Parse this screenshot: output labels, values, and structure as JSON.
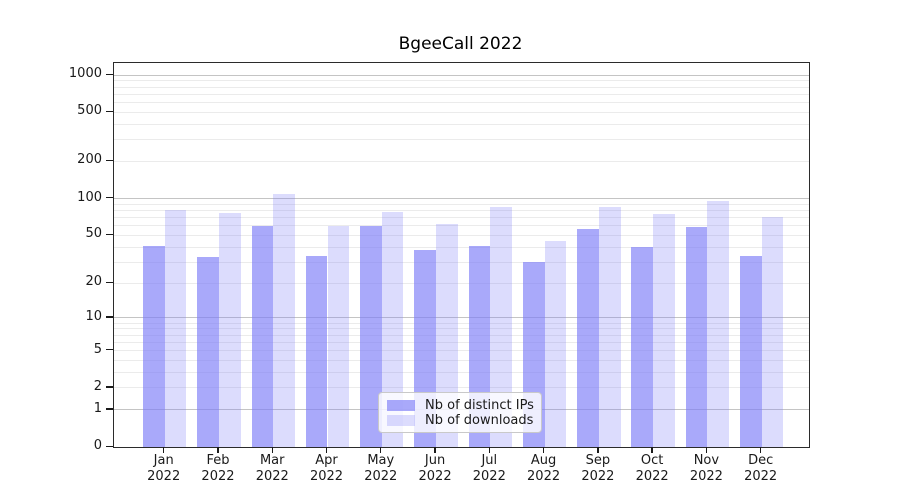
{
  "chart_data": {
    "type": "bar",
    "title": "BgeeCall 2022",
    "xlabel": "",
    "ylabel": "",
    "yscale": "log1p",
    "ylim": [
      0,
      1250
    ],
    "grid": true,
    "legend_position": "lower center",
    "categories": [
      "Jan",
      "Feb",
      "Mar",
      "Apr",
      "May",
      "Jun",
      "Jul",
      "Aug",
      "Sep",
      "Oct",
      "Nov",
      "Dec"
    ],
    "category_year": "2022",
    "series": [
      {
        "name": "Nb of distinct IPs",
        "color": "rgba(124,124,247,0.66)",
        "values": [
          41,
          33,
          60,
          34,
          60,
          38,
          41,
          30,
          56,
          40,
          58,
          34
        ]
      },
      {
        "name": "Nb of downloads",
        "color": "rgba(124,124,247,0.27)",
        "values": [
          80,
          76,
          108,
          60,
          77,
          62,
          85,
          45,
          86,
          75,
          96,
          70
        ]
      }
    ],
    "y_ticks": [
      1000,
      500,
      200,
      100,
      50,
      20,
      10,
      5,
      2,
      1,
      0
    ],
    "y_major_gridlines": [
      1,
      10,
      100,
      1000
    ],
    "y_minor_gridlines": [
      2,
      3,
      4,
      5,
      6,
      7,
      8,
      9,
      20,
      30,
      40,
      50,
      60,
      70,
      80,
      90,
      200,
      300,
      400,
      500,
      600,
      700,
      800,
      900
    ]
  },
  "colors": {
    "major_grid": "#c4c4c4",
    "minor_grid": "#ebebeb",
    "spine": "#2b2b2b",
    "text": "#1a1a1a"
  }
}
